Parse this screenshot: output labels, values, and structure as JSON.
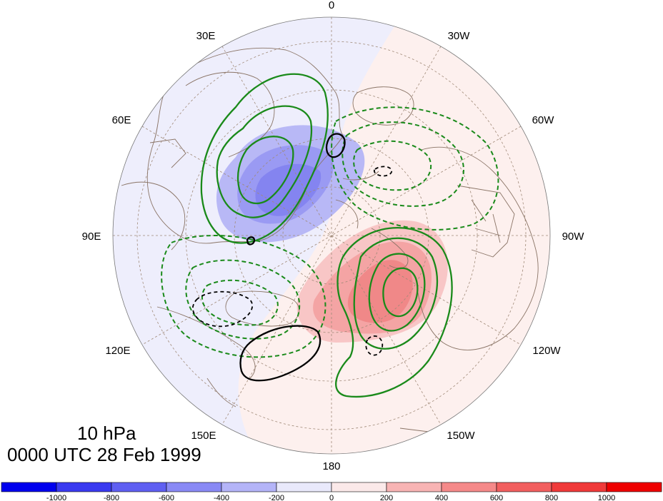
{
  "caption": {
    "level": "10 hPa",
    "time": "0000 UTC 28 Feb 1999"
  },
  "longitude_labels": {
    "top": "0",
    "upper_left": "30E",
    "upper_right": "30W",
    "mid_upper_left": "60E",
    "mid_upper_right": "60W",
    "left": "90E",
    "right": "90W",
    "lower_left": "120E",
    "lower_right": "120W",
    "bottom_left": "150E",
    "bottom_right": "150W",
    "bottom": "180"
  },
  "colorbar": {
    "labels": [
      "-1000",
      "-800",
      "-600",
      "-400",
      "-200",
      "0",
      "200",
      "400",
      "600",
      "800",
      "1000"
    ],
    "colors": [
      "#0000ee",
      "#3a3af0",
      "#5f5ff2",
      "#8989f5",
      "#b4b4f8",
      "#e9e9fb",
      "#fbe9e9",
      "#f8b4b4",
      "#f58989",
      "#f25f5f",
      "#f03a3a",
      "#ee0000"
    ]
  },
  "colors": {
    "positive_contour": "#1a8a1a",
    "negative_contour": "#1a8a1a",
    "black_contour": "#000000",
    "coastline": "#8a7466",
    "graticule": "#a08a78",
    "blue_shade": "#8c8cf0",
    "red_shade": "#f07878"
  }
}
